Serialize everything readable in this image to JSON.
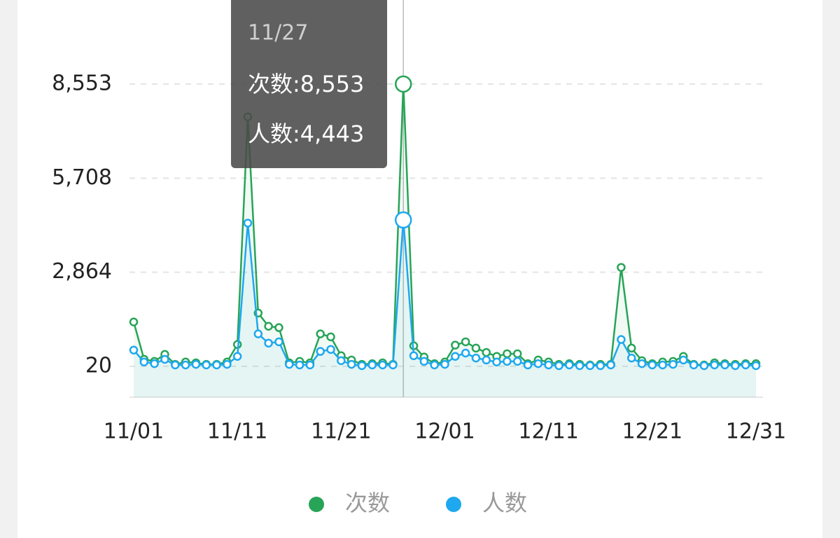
{
  "chart_data": {
    "type": "line",
    "categories": [
      "11/01",
      null,
      null,
      null,
      null,
      null,
      null,
      null,
      null,
      null,
      "11/11",
      null,
      null,
      null,
      null,
      null,
      null,
      null,
      null,
      null,
      "11/21",
      null,
      null,
      null,
      null,
      null,
      null,
      null,
      null,
      null,
      "12/01",
      null,
      null,
      null,
      null,
      null,
      null,
      null,
      null,
      null,
      "12/11",
      null,
      null,
      null,
      null,
      null,
      null,
      null,
      null,
      null,
      "12/21",
      null,
      null,
      null,
      null,
      null,
      null,
      null,
      null,
      null,
      "12/31"
    ],
    "series": [
      {
        "name": "次数",
        "color": "#27a457",
        "values": [
          1360,
          232,
          170,
          380,
          80,
          150,
          125,
          80,
          80,
          150,
          680,
          7560,
          1630,
          1230,
          1190,
          125,
          170,
          125,
          1000,
          910,
          340,
          210,
          80,
          100,
          125,
          80,
          8553,
          640,
          300,
          100,
          150,
          660,
          760,
          570,
          440,
          320,
          400,
          400,
          100,
          210,
          150,
          80,
          100,
          80,
          60,
          80,
          80,
          3010,
          570,
          190,
          100,
          150,
          170,
          320,
          80,
          60,
          125,
          100,
          80,
          100,
          100
        ]
      },
      {
        "name": "人数",
        "color": "#1ea8ef",
        "values": [
          510,
          150,
          100,
          230,
          60,
          60,
          80,
          60,
          60,
          80,
          320,
          4350,
          1000,
          720,
          760,
          80,
          60,
          60,
          470,
          530,
          190,
          80,
          40,
          60,
          60,
          60,
          4443,
          340,
          170,
          60,
          80,
          320,
          420,
          270,
          210,
          150,
          170,
          170,
          60,
          100,
          60,
          40,
          60,
          40,
          40,
          40,
          60,
          830,
          270,
          100,
          60,
          60,
          80,
          210,
          60,
          40,
          60,
          60,
          40,
          60,
          40
        ]
      }
    ],
    "ylim": [
      -914,
      8553
    ],
    "yticks": [
      20,
      {
        "value": 2864,
        "label": "2,864"
      },
      {
        "value": 5708,
        "label": "5,708"
      },
      {
        "value": 8553,
        "label": "8,553"
      }
    ],
    "grid": true,
    "legend": "bottom",
    "tooltip": {
      "title": "11/27",
      "entries": [
        "次数:8,553",
        "人数:4,443"
      ]
    }
  }
}
